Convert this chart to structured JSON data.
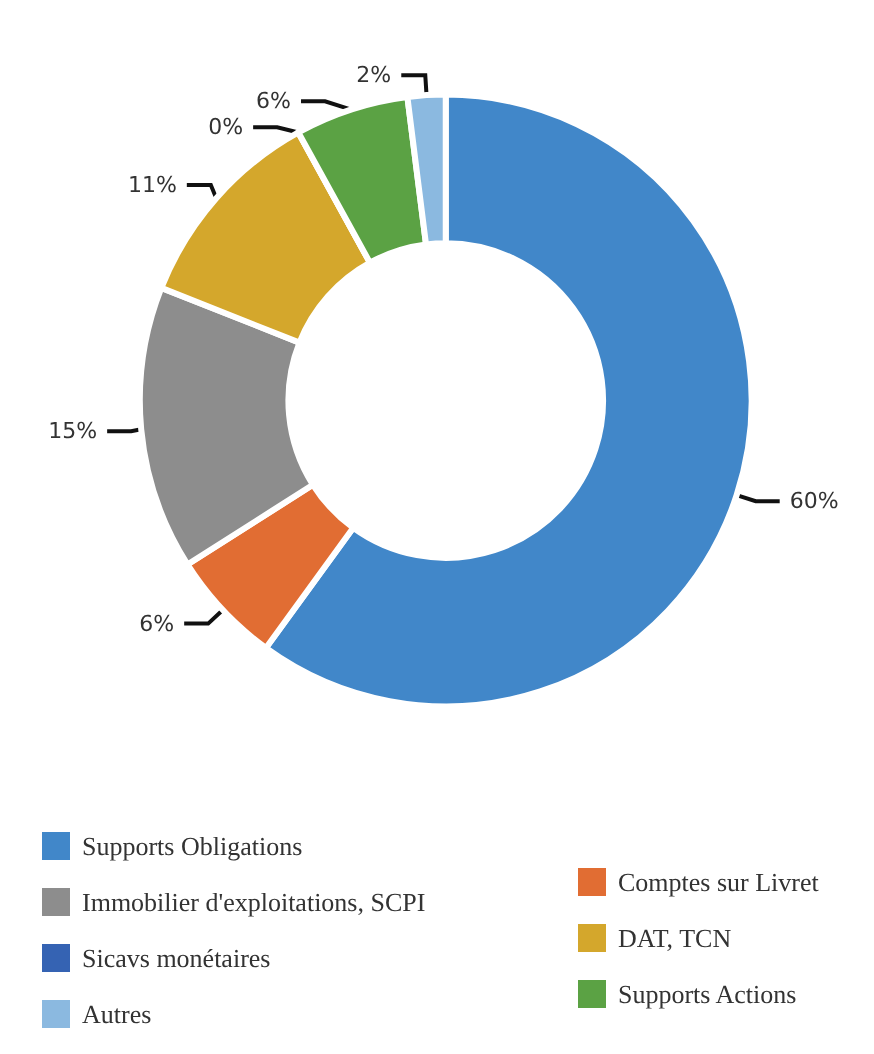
{
  "chart_data": {
    "type": "donut",
    "categories": [
      "Supports Obligations",
      "Comptes sur Livret",
      "Immobilier d'exploitations, SCPI",
      "DAT, TCN",
      "Sicavs monétaires",
      "Supports Actions",
      "Autres"
    ],
    "values": [
      60,
      6,
      15,
      11,
      0,
      6,
      2
    ],
    "colors": [
      "#4187c9",
      "#e16d33",
      "#8d8d8d",
      "#d4a72c",
      "#3563b3",
      "#5ba244",
      "#8bb9e0"
    ],
    "value_labels": [
      "60%",
      "6%",
      "15%",
      "11%",
      "0%",
      "6%",
      "2%"
    ],
    "legend": "bottom"
  }
}
